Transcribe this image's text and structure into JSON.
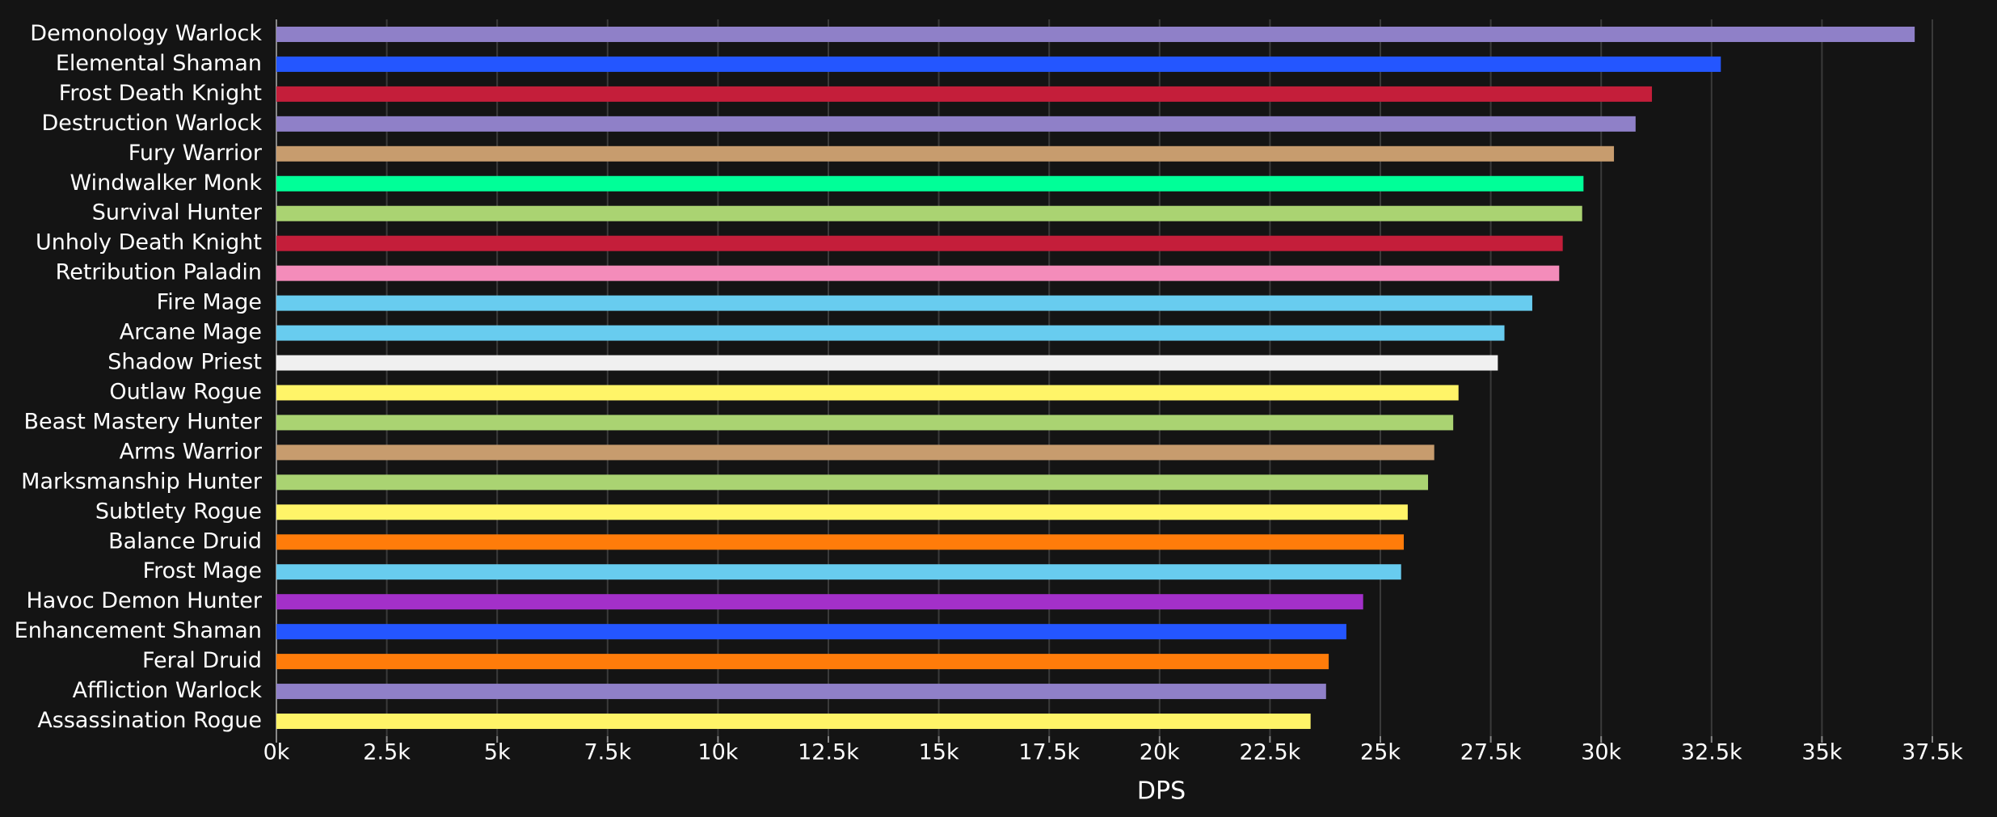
{
  "chart_data": {
    "type": "bar",
    "orientation": "horizontal",
    "x_label": "DPS",
    "categories": [
      "Demonology Warlock",
      "Elemental Shaman",
      "Frost Death Knight",
      "Destruction Warlock",
      "Fury Warrior",
      "Windwalker Monk",
      "Survival Hunter",
      "Unholy Death Knight",
      "Retribution Paladin",
      "Fire Mage",
      "Arcane Mage",
      "Shadow Priest",
      "Outlaw Rogue",
      "Beast Mastery Hunter",
      "Arms Warrior",
      "Marksmanship Hunter",
      "Subtlety Rogue",
      "Balance Druid",
      "Frost Mage",
      "Havoc Demon Hunter",
      "Enhancement Shaman",
      "Feral Druid",
      "Affliction Warlock",
      "Assassination Rogue"
    ],
    "values": [
      37100,
      32710,
      31150,
      30780,
      30290,
      29600,
      29570,
      29130,
      29050,
      28440,
      27810,
      27660,
      26770,
      26650,
      26220,
      26080,
      25620,
      25530,
      25470,
      24610,
      24230,
      23830,
      23770,
      23420
    ],
    "colors": [
      "#8f80c8",
      "#2456ff",
      "#c41e3a",
      "#8f80c8",
      "#c79c6e",
      "#00ff98",
      "#aad372",
      "#c41e3a",
      "#f48cba",
      "#68ccef",
      "#68ccef",
      "#f0f0f0",
      "#fff468",
      "#aad372",
      "#c79c6e",
      "#aad372",
      "#fff468",
      "#ff7c0a",
      "#68ccef",
      "#a330c9",
      "#2456ff",
      "#ff7c0a",
      "#8f80c8",
      "#fff468"
    ],
    "xlim": [
      0,
      37500
    ],
    "xticks": [
      {
        "value": 0,
        "label": "0k"
      },
      {
        "value": 2500,
        "label": "2.5k"
      },
      {
        "value": 5000,
        "label": "5k"
      },
      {
        "value": 7500,
        "label": "7.5k"
      },
      {
        "value": 10000,
        "label": "10k"
      },
      {
        "value": 12500,
        "label": "12.5k"
      },
      {
        "value": 15000,
        "label": "15k"
      },
      {
        "value": 17500,
        "label": "17.5k"
      },
      {
        "value": 20000,
        "label": "20k"
      },
      {
        "value": 22500,
        "label": "22.5k"
      },
      {
        "value": 25000,
        "label": "25k"
      },
      {
        "value": 27500,
        "label": "27.5k"
      },
      {
        "value": 30000,
        "label": "30k"
      },
      {
        "value": 32500,
        "label": "32.5k"
      },
      {
        "value": 35000,
        "label": "35k"
      },
      {
        "value": 37500,
        "label": "37.5k"
      }
    ],
    "grid": true
  }
}
